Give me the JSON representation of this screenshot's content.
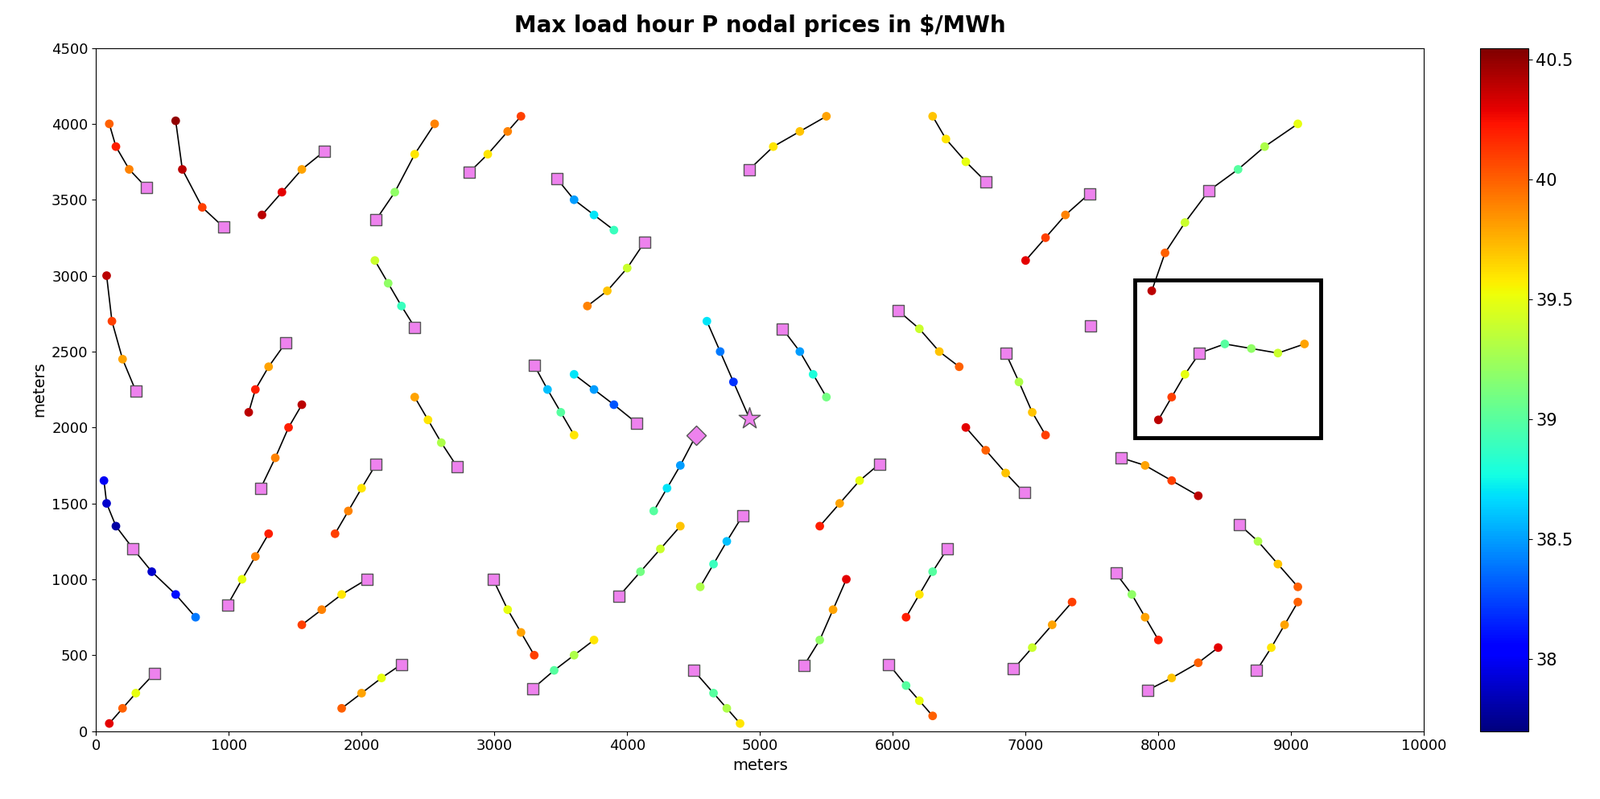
{
  "chart_data": {
    "type": "scatter",
    "title": "Max load hour P nodal prices in $/MWh",
    "x_label": "meters",
    "y_label": "meters",
    "xlim": [
      0,
      10000
    ],
    "xticks": [
      0,
      1000,
      2000,
      3000,
      4000,
      5000,
      6000,
      7000,
      8000,
      9000,
      10000
    ],
    "ylim": [
      0,
      4500
    ],
    "yticks": [
      0,
      500,
      1000,
      1500,
      2000,
      2500,
      3000,
      3500,
      4000,
      4500
    ],
    "colorbar": {
      "range": [
        37.7,
        40.55
      ],
      "ticks": [
        38,
        38.5,
        39,
        39.5,
        40,
        40.5
      ]
    },
    "grid": false,
    "feeders": [
      {
        "x": [
          380,
          250,
          150,
          100
        ],
        "y": [
          3580,
          3700,
          3850,
          4000
        ],
        "price": [
          39.6,
          39.9,
          40.2,
          40.0
        ]
      },
      {
        "x": [
          960,
          800,
          650,
          600
        ],
        "y": [
          3320,
          3450,
          3700,
          4020
        ],
        "price": [
          39.5,
          40.1,
          40.4,
          40.5
        ]
      },
      {
        "x": [
          1720,
          1550,
          1400,
          1250
        ],
        "y": [
          3820,
          3700,
          3550,
          3400
        ],
        "price": [
          39.3,
          39.8,
          40.3,
          40.4
        ]
      },
      {
        "x": [
          2110,
          2250,
          2400,
          2550
        ],
        "y": [
          3370,
          3550,
          3800,
          4000
        ],
        "price": [
          38.9,
          39.2,
          39.6,
          39.9
        ]
      },
      {
        "x": [
          2810,
          2950,
          3100,
          3200
        ],
        "y": [
          3680,
          3800,
          3950,
          4050
        ],
        "price": [
          39.2,
          39.6,
          39.9,
          40.1
        ]
      },
      {
        "x": [
          3470,
          3600,
          3750,
          3900
        ],
        "y": [
          3640,
          3500,
          3400,
          3300
        ],
        "price": [
          38.6,
          38.5,
          38.7,
          38.9
        ]
      },
      {
        "x": [
          4130,
          4000,
          3850,
          3700
        ],
        "y": [
          3220,
          3050,
          2900,
          2800
        ],
        "price": [
          39.0,
          39.4,
          39.7,
          39.9
        ]
      },
      {
        "x": [
          4920,
          5100,
          5300,
          5500
        ],
        "y": [
          3700,
          3850,
          3950,
          4050
        ],
        "price": [
          39.4,
          39.6,
          39.7,
          39.8
        ]
      },
      {
        "x": [
          6700,
          6550,
          6400,
          6300
        ],
        "y": [
          3620,
          3750,
          3900,
          4050
        ],
        "price": [
          39.3,
          39.5,
          39.6,
          39.7
        ]
      },
      {
        "x": [
          7480,
          7300,
          7150,
          7000
        ],
        "y": [
          3540,
          3400,
          3250,
          3100
        ],
        "price": [
          39.6,
          39.9,
          40.1,
          40.3
        ]
      },
      {
        "x": [
          8380,
          8600,
          8800,
          9050
        ],
        "y": [
          3560,
          3700,
          3850,
          4000
        ],
        "price": [
          38.8,
          39.0,
          39.3,
          39.5
        ]
      },
      {
        "x": [
          8380,
          8200,
          8050,
          7950
        ],
        "y": [
          3560,
          3350,
          3150,
          2900
        ],
        "price": [
          38.8,
          39.4,
          40.0,
          40.4
        ]
      },
      {
        "x": [
          300,
          200,
          120,
          80
        ],
        "y": [
          2240,
          2450,
          2700,
          3000
        ],
        "price": [
          39.4,
          39.8,
          40.1,
          40.4
        ]
      },
      {
        "x": [
          1430,
          1300,
          1200,
          1150
        ],
        "y": [
          2560,
          2400,
          2250,
          2100
        ],
        "price": [
          39.4,
          39.8,
          40.2,
          40.4
        ]
      },
      {
        "x": [
          2400,
          2300,
          2200,
          2100
        ],
        "y": [
          2660,
          2800,
          2950,
          3100
        ],
        "price": [
          38.6,
          38.9,
          39.2,
          39.4
        ]
      },
      {
        "x": [
          3300,
          3400,
          3500,
          3600
        ],
        "y": [
          2410,
          2250,
          2100,
          1950
        ],
        "price": [
          38.4,
          38.6,
          39.0,
          39.6
        ]
      },
      {
        "x": [
          4070,
          3900,
          3750,
          3600
        ],
        "y": [
          2030,
          2150,
          2250,
          2350
        ],
        "price": [
          38.4,
          38.3,
          38.5,
          38.7
        ]
      },
      {
        "x": [
          5170,
          5300,
          5400,
          5500
        ],
        "y": [
          2650,
          2500,
          2350,
          2200
        ],
        "price": [
          38.3,
          38.5,
          38.8,
          39.1
        ]
      },
      {
        "x": [
          6040,
          6200,
          6350,
          6500
        ],
        "y": [
          2770,
          2650,
          2500,
          2400
        ],
        "price": [
          39.1,
          39.4,
          39.7,
          40.0
        ]
      },
      {
        "x": [
          6850,
          6950,
          7050,
          7150
        ],
        "y": [
          2490,
          2300,
          2100,
          1950
        ],
        "price": [
          38.9,
          39.3,
          39.7,
          40.1
        ]
      },
      {
        "x": [
          8310,
          8500,
          8700,
          8900,
          9100
        ],
        "y": [
          2490,
          2550,
          2520,
          2490,
          2550
        ],
        "price": [
          38.8,
          39.0,
          39.2,
          39.4,
          39.8
        ]
      },
      {
        "x": [
          8310,
          8200,
          8100,
          8000
        ],
        "y": [
          2490,
          2350,
          2200,
          2050
        ],
        "price": [
          38.8,
          39.5,
          40.1,
          40.4
        ]
      },
      {
        "x": [
          280,
          150,
          80,
          60
        ],
        "y": [
          1200,
          1350,
          1500,
          1650
        ],
        "price": [
          37.8,
          37.8,
          37.9,
          38.0
        ]
      },
      {
        "x": [
          280,
          420,
          600,
          750
        ],
        "y": [
          1200,
          1050,
          900,
          750
        ],
        "price": [
          37.8,
          37.9,
          38.1,
          38.4
        ]
      },
      {
        "x": [
          990,
          1100,
          1200,
          1300
        ],
        "y": [
          830,
          1000,
          1150,
          1300
        ],
        "price": [
          39.0,
          39.5,
          39.9,
          40.2
        ]
      },
      {
        "x": [
          1240,
          1350,
          1450,
          1550
        ],
        "y": [
          1600,
          1800,
          2000,
          2150
        ],
        "price": [
          39.6,
          39.9,
          40.2,
          40.4
        ]
      },
      {
        "x": [
          2110,
          2000,
          1900,
          1800
        ],
        "y": [
          1760,
          1600,
          1450,
          1300
        ],
        "price": [
          39.3,
          39.6,
          39.9,
          40.1
        ]
      },
      {
        "x": [
          2720,
          2600,
          2500,
          2400
        ],
        "y": [
          1740,
          1900,
          2050,
          2200
        ],
        "price": [
          39.0,
          39.3,
          39.6,
          39.8
        ]
      },
      {
        "x": [
          2040,
          1850,
          1700,
          1550
        ],
        "y": [
          1000,
          900,
          800,
          700
        ],
        "price": [
          39.3,
          39.6,
          39.9,
          40.1
        ]
      },
      {
        "x": [
          2990,
          3100,
          3200,
          3300
        ],
        "y": [
          1000,
          800,
          650,
          500
        ],
        "price": [
          39.1,
          39.5,
          39.8,
          40.1
        ]
      },
      {
        "x": [
          3940,
          4100,
          4250,
          4400
        ],
        "y": [
          890,
          1050,
          1200,
          1350
        ],
        "price": [
          38.8,
          39.1,
          39.4,
          39.7
        ]
      },
      {
        "x": [
          4870,
          4750,
          4650,
          4550
        ],
        "y": [
          1420,
          1250,
          1100,
          950
        ],
        "price": [
          38.3,
          38.6,
          38.9,
          39.3
        ]
      },
      {
        "x": [
          5900,
          5750,
          5600,
          5450
        ],
        "y": [
          1760,
          1650,
          1500,
          1350
        ],
        "price": [
          39.2,
          39.5,
          39.8,
          40.2
        ]
      },
      {
        "x": [
          6410,
          6300,
          6200,
          6100
        ],
        "y": [
          1200,
          1050,
          900,
          750
        ],
        "price": [
          38.6,
          39.0,
          39.6,
          40.2
        ]
      },
      {
        "x": [
          6990,
          6850,
          6700,
          6550
        ],
        "y": [
          1570,
          1700,
          1850,
          2000
        ],
        "price": [
          39.4,
          39.7,
          40.0,
          40.3
        ]
      },
      {
        "x": [
          7680,
          7800,
          7900,
          8000
        ],
        "y": [
          1040,
          900,
          750,
          600
        ],
        "price": [
          38.6,
          39.2,
          39.8,
          40.2
        ]
      },
      {
        "x": [
          7720,
          7900,
          8100,
          8300
        ],
        "y": [
          1800,
          1750,
          1650,
          1550
        ],
        "price": [
          39.5,
          39.8,
          40.1,
          40.4
        ]
      },
      {
        "x": [
          8610,
          8750,
          8900,
          9050
        ],
        "y": [
          1360,
          1250,
          1100,
          950
        ],
        "price": [
          38.9,
          39.3,
          39.7,
          40.0
        ]
      },
      {
        "x": [
          440,
          300,
          200,
          100
        ],
        "y": [
          380,
          250,
          150,
          50
        ],
        "price": [
          38.9,
          39.5,
          40.0,
          40.3
        ]
      },
      {
        "x": [
          2300,
          2150,
          2000,
          1850
        ],
        "y": [
          440,
          350,
          250,
          150
        ],
        "price": [
          39.2,
          39.5,
          39.8,
          40.0
        ]
      },
      {
        "x": [
          3290,
          3450,
          3600,
          3750
        ],
        "y": [
          280,
          400,
          500,
          600
        ],
        "price": [
          38.7,
          39.0,
          39.3,
          39.6
        ]
      },
      {
        "x": [
          4500,
          4650,
          4750,
          4850
        ],
        "y": [
          400,
          250,
          150,
          50
        ],
        "price": [
          38.7,
          39.0,
          39.3,
          39.6
        ]
      },
      {
        "x": [
          5330,
          5450,
          5550,
          5650
        ],
        "y": [
          430,
          600,
          800,
          1000
        ],
        "price": [
          38.6,
          39.2,
          39.8,
          40.3
        ]
      },
      {
        "x": [
          5970,
          6100,
          6200,
          6300
        ],
        "y": [
          440,
          300,
          200,
          100
        ],
        "price": [
          38.5,
          39.0,
          39.5,
          40.0
        ]
      },
      {
        "x": [
          6910,
          7050,
          7200,
          7350
        ],
        "y": [
          410,
          550,
          700,
          850
        ],
        "price": [
          39.0,
          39.4,
          39.8,
          40.1
        ]
      },
      {
        "x": [
          7920,
          8100,
          8300,
          8450
        ],
        "y": [
          270,
          350,
          450,
          550
        ],
        "price": [
          39.4,
          39.7,
          40.0,
          40.3
        ]
      },
      {
        "x": [
          8740,
          8850,
          8950,
          9050
        ],
        "y": [
          400,
          550,
          700,
          850
        ],
        "price": [
          39.3,
          39.6,
          39.8,
          40.0
        ]
      },
      {
        "x": [
          4920,
          4800,
          4700,
          4600
        ],
        "y": [
          2060,
          2300,
          2500,
          2700
        ],
        "price": [
          38.3,
          38.2,
          38.4,
          38.7
        ]
      },
      {
        "x": [
          4520,
          4400,
          4300,
          4200
        ],
        "y": [
          1950,
          1750,
          1600,
          1450
        ],
        "price": [
          38.6,
          38.5,
          38.7,
          39.0
        ]
      }
    ],
    "substations": {
      "marker": "square",
      "color": "#ee82ee",
      "x": [
        380,
        960,
        1720,
        2810,
        3470,
        4920,
        2110,
        4130,
        6700,
        7480,
        8380,
        1430,
        2400,
        3300,
        5170,
        6040,
        6850,
        7490,
        8310,
        300,
        4070,
        2110,
        2720,
        1240,
        5900,
        7720,
        280,
        990,
        2040,
        2990,
        3940,
        4870,
        6410,
        6990,
        7680,
        8610,
        440,
        2300,
        3290,
        4500,
        5330,
        5970,
        6910,
        7920,
        8740
      ],
      "y": [
        3580,
        3320,
        3820,
        3680,
        3640,
        3700,
        3370,
        3220,
        3620,
        3540,
        3560,
        2560,
        2660,
        2410,
        2650,
        2770,
        2490,
        2670,
        2490,
        2240,
        2030,
        1760,
        1740,
        1600,
        1760,
        1800,
        1200,
        830,
        1000,
        1000,
        890,
        1420,
        1200,
        1570,
        1040,
        1360,
        380,
        440,
        280,
        400,
        430,
        440,
        410,
        270,
        400
      ]
    },
    "star": {
      "marker": "star",
      "color": "#ee82ee",
      "x": [
        4920
      ],
      "y": [
        2060
      ]
    },
    "diamond": {
      "marker": "diamond",
      "color": "#ee82ee",
      "x": [
        4520
      ],
      "y": [
        1950
      ]
    },
    "highlight_box": {
      "color": "#000000",
      "x": [
        7820,
        9220
      ],
      "y": [
        1930,
        2970
      ]
    }
  }
}
